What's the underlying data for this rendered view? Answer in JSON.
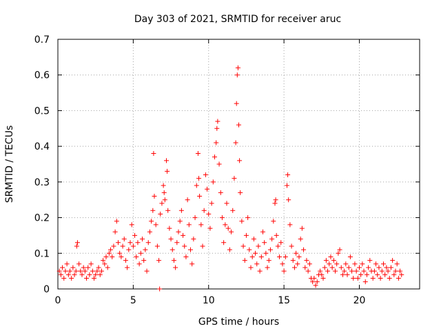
{
  "chart_data": {
    "type": "scatter",
    "title": "Day 303 of 2021, SRMTID for receiver aruc",
    "xlabel": "GPS time / hours",
    "ylabel": "SRMTID / TECUs",
    "xlim": [
      0,
      24
    ],
    "ylim": [
      0,
      0.7
    ],
    "xticks": [
      0,
      5,
      10,
      15,
      20
    ],
    "xtick_labels": [
      "0",
      "5",
      "10",
      "15",
      "20"
    ],
    "yticks": [
      0,
      0.1,
      0.2,
      0.3,
      0.4,
      0.5,
      0.6,
      0.7
    ],
    "ytick_labels": [
      "0",
      "0.1",
      "0.2",
      "0.3",
      "0.4",
      "0.5",
      "0.6",
      "0.7"
    ],
    "grid": true,
    "marker": "+",
    "color": "#ff0000",
    "series": [
      {
        "name": "aruc",
        "points": [
          [
            0.1,
            0.05
          ],
          [
            0.2,
            0.04
          ],
          [
            0.3,
            0.06
          ],
          [
            0.4,
            0.03
          ],
          [
            0.5,
            0.05
          ],
          [
            0.6,
            0.07
          ],
          [
            0.7,
            0.04
          ],
          [
            0.8,
            0.05
          ],
          [
            0.9,
            0.03
          ],
          [
            1.0,
            0.06
          ],
          [
            1.1,
            0.04
          ],
          [
            1.2,
            0.05
          ],
          [
            1.25,
            0.12
          ],
          [
            1.3,
            0.13
          ],
          [
            1.4,
            0.07
          ],
          [
            1.5,
            0.05
          ],
          [
            1.6,
            0.04
          ],
          [
            1.7,
            0.06
          ],
          [
            1.8,
            0.05
          ],
          [
            1.9,
            0.03
          ],
          [
            2.0,
            0.06
          ],
          [
            2.1,
            0.04
          ],
          [
            2.2,
            0.07
          ],
          [
            2.3,
            0.05
          ],
          [
            2.4,
            0.03
          ],
          [
            2.5,
            0.04
          ],
          [
            2.6,
            0.05
          ],
          [
            2.7,
            0.06
          ],
          [
            2.8,
            0.04
          ],
          [
            2.9,
            0.05
          ],
          [
            3.0,
            0.08
          ],
          [
            3.1,
            0.07
          ],
          [
            3.2,
            0.09
          ],
          [
            3.3,
            0.06
          ],
          [
            3.4,
            0.1
          ],
          [
            3.5,
            0.11
          ],
          [
            3.6,
            0.09
          ],
          [
            3.7,
            0.12
          ],
          [
            3.8,
            0.16
          ],
          [
            3.9,
            0.19
          ],
          [
            4.0,
            0.13
          ],
          [
            4.1,
            0.1
          ],
          [
            4.2,
            0.09
          ],
          [
            4.3,
            0.12
          ],
          [
            4.4,
            0.14
          ],
          [
            4.5,
            0.08
          ],
          [
            4.6,
            0.06
          ],
          [
            4.7,
            0.11
          ],
          [
            4.8,
            0.13
          ],
          [
            4.9,
            0.18
          ],
          [
            5.0,
            0.12
          ],
          [
            5.1,
            0.15
          ],
          [
            5.2,
            0.09
          ],
          [
            5.3,
            0.13
          ],
          [
            5.4,
            0.07
          ],
          [
            5.5,
            0.1
          ],
          [
            5.6,
            0.14
          ],
          [
            5.7,
            0.08
          ],
          [
            5.8,
            0.11
          ],
          [
            5.9,
            0.05
          ],
          [
            6.0,
            0.13
          ],
          [
            6.1,
            0.16
          ],
          [
            6.2,
            0.19
          ],
          [
            6.3,
            0.22
          ],
          [
            6.35,
            0.38
          ],
          [
            6.4,
            0.26
          ],
          [
            6.5,
            0.18
          ],
          [
            6.6,
            0.12
          ],
          [
            6.7,
            0.08
          ],
          [
            6.75,
            0.0
          ],
          [
            6.8,
            0.21
          ],
          [
            6.9,
            0.24
          ],
          [
            7.0,
            0.29
          ],
          [
            7.05,
            0.27
          ],
          [
            7.1,
            0.25
          ],
          [
            7.2,
            0.36
          ],
          [
            7.25,
            0.33
          ],
          [
            7.3,
            0.22
          ],
          [
            7.4,
            0.17
          ],
          [
            7.5,
            0.14
          ],
          [
            7.6,
            0.11
          ],
          [
            7.7,
            0.08
          ],
          [
            7.8,
            0.06
          ],
          [
            7.9,
            0.13
          ],
          [
            8.0,
            0.16
          ],
          [
            8.1,
            0.19
          ],
          [
            8.2,
            0.22
          ],
          [
            8.3,
            0.15
          ],
          [
            8.4,
            0.12
          ],
          [
            8.5,
            0.09
          ],
          [
            8.6,
            0.25
          ],
          [
            8.7,
            0.18
          ],
          [
            8.8,
            0.11
          ],
          [
            8.9,
            0.07
          ],
          [
            9.0,
            0.14
          ],
          [
            9.1,
            0.2
          ],
          [
            9.2,
            0.29
          ],
          [
            9.3,
            0.38
          ],
          [
            9.35,
            0.31
          ],
          [
            9.4,
            0.26
          ],
          [
            9.5,
            0.18
          ],
          [
            9.6,
            0.12
          ],
          [
            9.7,
            0.22
          ],
          [
            9.8,
            0.32
          ],
          [
            9.9,
            0.28
          ],
          [
            10.0,
            0.21
          ],
          [
            10.1,
            0.17
          ],
          [
            10.2,
            0.24
          ],
          [
            10.3,
            0.3
          ],
          [
            10.4,
            0.37
          ],
          [
            10.5,
            0.41
          ],
          [
            10.55,
            0.45
          ],
          [
            10.6,
            0.47
          ],
          [
            10.7,
            0.35
          ],
          [
            10.8,
            0.27
          ],
          [
            10.9,
            0.2
          ],
          [
            11.0,
            0.13
          ],
          [
            11.1,
            0.18
          ],
          [
            11.2,
            0.24
          ],
          [
            11.3,
            0.17
          ],
          [
            11.4,
            0.11
          ],
          [
            11.5,
            0.16
          ],
          [
            11.6,
            0.22
          ],
          [
            11.7,
            0.31
          ],
          [
            11.8,
            0.41
          ],
          [
            11.85,
            0.52
          ],
          [
            11.9,
            0.6
          ],
          [
            11.95,
            0.62
          ],
          [
            12.0,
            0.46
          ],
          [
            12.05,
            0.36
          ],
          [
            12.1,
            0.27
          ],
          [
            12.2,
            0.19
          ],
          [
            12.3,
            0.12
          ],
          [
            12.4,
            0.08
          ],
          [
            12.5,
            0.15
          ],
          [
            12.6,
            0.2
          ],
          [
            12.7,
            0.11
          ],
          [
            12.8,
            0.06
          ],
          [
            12.9,
            0.09
          ],
          [
            13.0,
            0.14
          ],
          [
            13.1,
            0.1
          ],
          [
            13.2,
            0.07
          ],
          [
            13.3,
            0.12
          ],
          [
            13.4,
            0.05
          ],
          [
            13.5,
            0.09
          ],
          [
            13.6,
            0.16
          ],
          [
            13.7,
            0.13
          ],
          [
            13.8,
            0.1
          ],
          [
            13.9,
            0.06
          ],
          [
            14.0,
            0.08
          ],
          [
            14.1,
            0.11
          ],
          [
            14.2,
            0.14
          ],
          [
            14.3,
            0.19
          ],
          [
            14.4,
            0.24
          ],
          [
            14.45,
            0.25
          ],
          [
            14.5,
            0.15
          ],
          [
            14.6,
            0.12
          ],
          [
            14.7,
            0.09
          ],
          [
            14.8,
            0.13
          ],
          [
            14.9,
            0.07
          ],
          [
            15.0,
            0.05
          ],
          [
            15.1,
            0.09
          ],
          [
            15.2,
            0.29
          ],
          [
            15.25,
            0.32
          ],
          [
            15.3,
            0.25
          ],
          [
            15.4,
            0.18
          ],
          [
            15.5,
            0.12
          ],
          [
            15.6,
            0.08
          ],
          [
            15.7,
            0.06
          ],
          [
            15.8,
            0.1
          ],
          [
            15.9,
            0.07
          ],
          [
            16.0,
            0.09
          ],
          [
            16.1,
            0.14
          ],
          [
            16.2,
            0.17
          ],
          [
            16.3,
            0.11
          ],
          [
            16.4,
            0.06
          ],
          [
            16.5,
            0.08
          ],
          [
            16.6,
            0.05
          ],
          [
            16.7,
            0.07
          ],
          [
            16.8,
            0.03
          ],
          [
            16.9,
            0.02
          ],
          [
            17.0,
            0.03
          ],
          [
            17.1,
            0.01
          ],
          [
            17.2,
            0.02
          ],
          [
            17.3,
            0.04
          ],
          [
            17.4,
            0.05
          ],
          [
            17.5,
            0.04
          ],
          [
            17.6,
            0.03
          ],
          [
            17.7,
            0.06
          ],
          [
            17.8,
            0.08
          ],
          [
            17.9,
            0.05
          ],
          [
            18.0,
            0.07
          ],
          [
            18.1,
            0.09
          ],
          [
            18.2,
            0.06
          ],
          [
            18.3,
            0.08
          ],
          [
            18.4,
            0.05
          ],
          [
            18.5,
            0.07
          ],
          [
            18.6,
            0.1
          ],
          [
            18.7,
            0.11
          ],
          [
            18.8,
            0.06
          ],
          [
            18.9,
            0.04
          ],
          [
            19.0,
            0.05
          ],
          [
            19.1,
            0.07
          ],
          [
            19.2,
            0.04
          ],
          [
            19.3,
            0.06
          ],
          [
            19.4,
            0.09
          ],
          [
            19.5,
            0.05
          ],
          [
            19.6,
            0.03
          ],
          [
            19.7,
            0.07
          ],
          [
            19.8,
            0.05
          ],
          [
            19.9,
            0.03
          ],
          [
            20.0,
            0.06
          ],
          [
            20.1,
            0.04
          ],
          [
            20.2,
            0.07
          ],
          [
            20.3,
            0.05
          ],
          [
            20.4,
            0.02
          ],
          [
            20.5,
            0.04
          ],
          [
            20.6,
            0.06
          ],
          [
            20.7,
            0.08
          ],
          [
            20.8,
            0.05
          ],
          [
            20.9,
            0.03
          ],
          [
            21.0,
            0.05
          ],
          [
            21.1,
            0.07
          ],
          [
            21.2,
            0.04
          ],
          [
            21.3,
            0.06
          ],
          [
            21.4,
            0.03
          ],
          [
            21.5,
            0.05
          ],
          [
            21.6,
            0.07
          ],
          [
            21.7,
            0.04
          ],
          [
            21.8,
            0.06
          ],
          [
            21.9,
            0.05
          ],
          [
            22.0,
            0.03
          ],
          [
            22.1,
            0.06
          ],
          [
            22.2,
            0.08
          ],
          [
            22.3,
            0.04
          ],
          [
            22.4,
            0.05
          ],
          [
            22.5,
            0.07
          ],
          [
            22.6,
            0.03
          ],
          [
            22.7,
            0.05
          ],
          [
            22.8,
            0.04
          ]
        ]
      }
    ]
  }
}
